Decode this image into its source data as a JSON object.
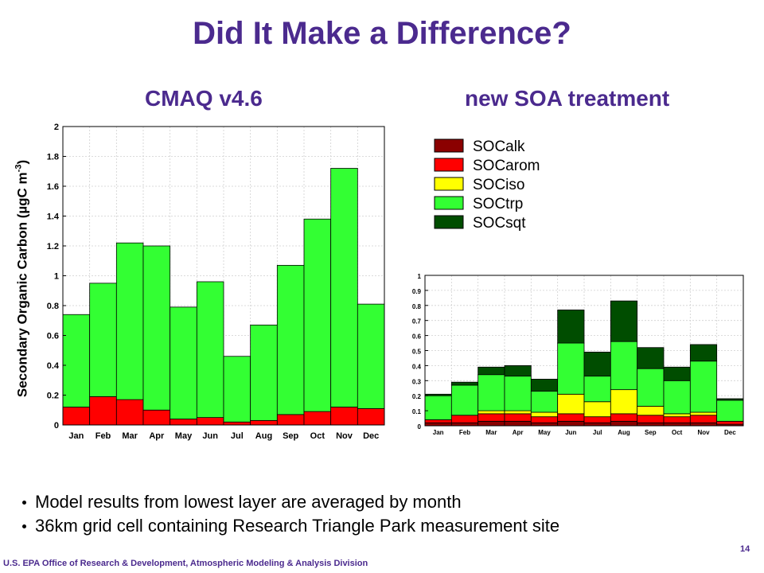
{
  "slide": {
    "title": "Did It Make a Difference?",
    "left_subtitle": "CMAQ v4.6",
    "right_subtitle": "new SOA treatment",
    "y_axis_label": "Secondary Organic Carbon (µgC m",
    "y_axis_label_sup": "-3",
    "y_axis_label_close": ")",
    "bullets": [
      "Model results from lowest layer are averaged by month",
      "36km grid cell containing Research Triangle Park measurement site"
    ],
    "footer": "U.S. EPA Office of Research & Development, Atmospheric Modeling & Analysis Division",
    "page_number": "14"
  },
  "colors": {
    "title_purple": "#4b2a8e",
    "SOCalk": "#8b0000",
    "SOCarom": "#ff0000",
    "SOCiso": "#ffff00",
    "SOCtrp": "#33ff33",
    "SOCsqt": "#004d00"
  },
  "chart_data": [
    {
      "type": "bar",
      "stacked": true,
      "title": "CMAQ v4.6",
      "ylabel": "Secondary Organic Carbon (µgC m-3)",
      "categories": [
        "Jan",
        "Feb",
        "Mar",
        "Apr",
        "May",
        "Jun",
        "Jul",
        "Aug",
        "Sep",
        "Oct",
        "Nov",
        "Dec"
      ],
      "ylim": [
        0,
        2
      ],
      "yticks": [
        0,
        0.2,
        0.4,
        0.6,
        0.8,
        1,
        1.2,
        1.4,
        1.6,
        1.8,
        2
      ],
      "ytick_labels": [
        "0",
        "0.2",
        "0.4",
        "0.6",
        "0.8",
        "1",
        "1.2",
        "1.4",
        "1.6",
        "1.8",
        "2"
      ],
      "grid": true,
      "series": [
        {
          "color": "#ff0000",
          "values": [
            0.12,
            0.19,
            0.17,
            0.1,
            0.04,
            0.05,
            0.02,
            0.03,
            0.07,
            0.09,
            0.12,
            0.11
          ]
        },
        {
          "color": "#33ff33",
          "values": [
            0.62,
            0.76,
            1.05,
            1.1,
            0.75,
            0.91,
            0.44,
            0.64,
            1.0,
            1.29,
            1.6,
            0.7
          ]
        }
      ]
    },
    {
      "type": "bar",
      "stacked": true,
      "title": "new SOA treatment",
      "categories": [
        "Jan",
        "Feb",
        "Mar",
        "Apr",
        "May",
        "Jun",
        "Jul",
        "Aug",
        "Sep",
        "Oct",
        "Nov",
        "Dec"
      ],
      "ylim": [
        0,
        1
      ],
      "yticks": [
        0,
        0.1,
        0.2,
        0.3,
        0.4,
        0.5,
        0.6,
        0.7,
        0.8,
        0.9,
        1
      ],
      "ytick_labels": [
        "0",
        "0.1",
        "0.2",
        "0.3",
        "0.4",
        "0.5",
        "0.6",
        "0.7",
        "0.8",
        "0.9",
        "1"
      ],
      "grid": true,
      "legend_position": "top",
      "series": [
        {
          "name": "SOCalk",
          "color": "#8b0000",
          "values": [
            0.02,
            0.02,
            0.03,
            0.03,
            0.02,
            0.03,
            0.02,
            0.03,
            0.02,
            0.02,
            0.02,
            0.01
          ]
        },
        {
          "name": "SOCarom",
          "color": "#ff0000",
          "values": [
            0.02,
            0.05,
            0.05,
            0.05,
            0.04,
            0.05,
            0.04,
            0.05,
            0.05,
            0.04,
            0.05,
            0.02
          ]
        },
        {
          "name": "SOCiso",
          "color": "#ffff00",
          "values": [
            0.0,
            0.0,
            0.02,
            0.02,
            0.03,
            0.13,
            0.1,
            0.16,
            0.06,
            0.02,
            0.02,
            0.0
          ]
        },
        {
          "name": "SOCtrp",
          "color": "#33ff33",
          "values": [
            0.16,
            0.2,
            0.24,
            0.23,
            0.14,
            0.34,
            0.17,
            0.32,
            0.25,
            0.22,
            0.34,
            0.14
          ]
        },
        {
          "name": "SOCsqt",
          "color": "#004d00",
          "values": [
            0.01,
            0.02,
            0.05,
            0.07,
            0.08,
            0.22,
            0.16,
            0.27,
            0.14,
            0.09,
            0.11,
            0.01
          ]
        }
      ]
    }
  ]
}
